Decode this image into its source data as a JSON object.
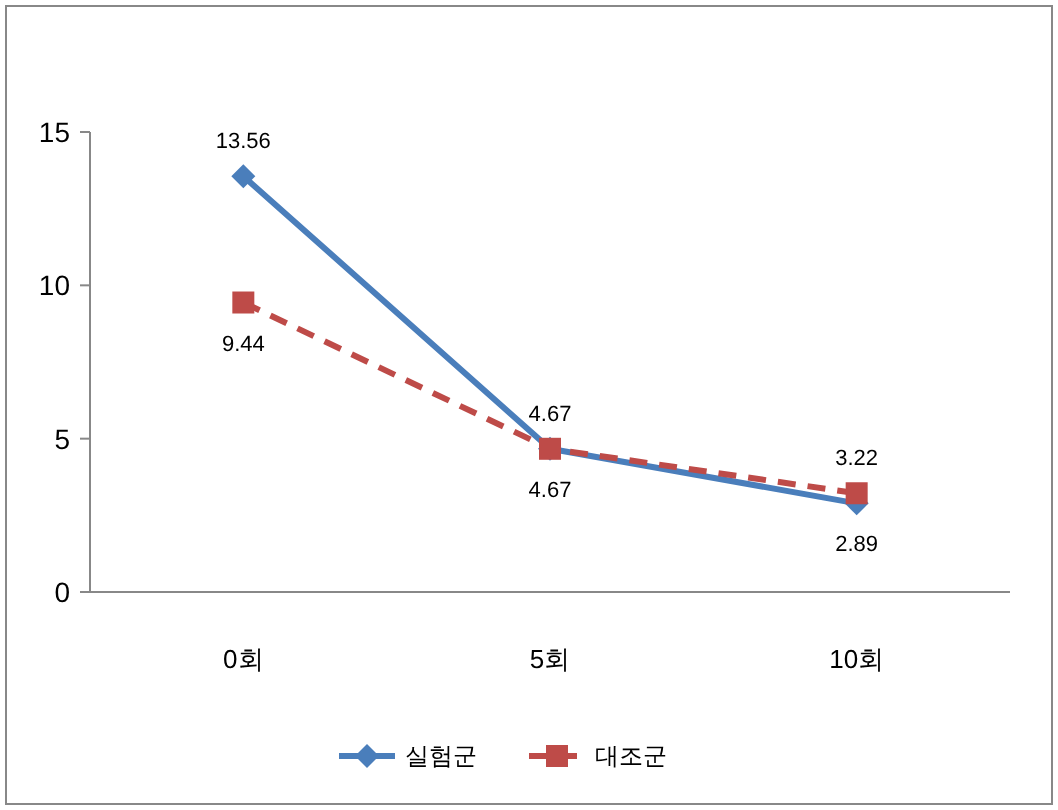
{
  "chart_data": {
    "type": "line",
    "categories": [
      "0회",
      "5회",
      "10회"
    ],
    "series": [
      {
        "name": "실험군",
        "color": "#4a7ebb",
        "values": [
          13.56,
          4.67,
          2.89
        ],
        "marker": "diamond",
        "line_style": "solid"
      },
      {
        "name": "대조군",
        "color": "#be4b48",
        "values": [
          9.44,
          4.67,
          3.22
        ],
        "marker": "square",
        "line_style": "dashed"
      }
    ],
    "ylim": [
      0,
      15
    ],
    "yticks": [
      0,
      5,
      10,
      15
    ],
    "grid": false,
    "legend": "bottom",
    "data_labels": true
  }
}
